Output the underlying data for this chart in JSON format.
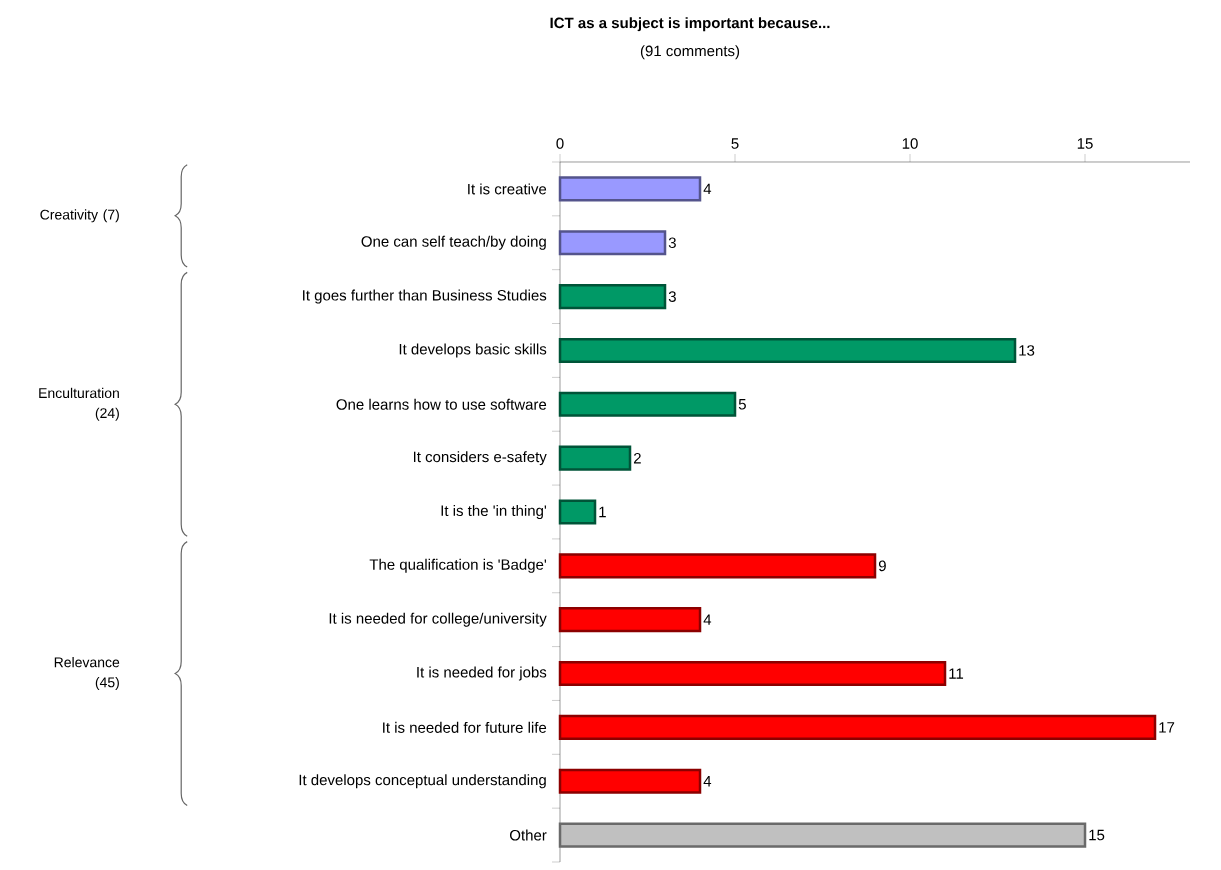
{
  "chart_data": {
    "type": "bar",
    "orientation": "horizontal",
    "title": "ICT as a subject is important because...",
    "subtitle": "(91 comments)",
    "categories": [
      "It is creative",
      "One can self teach/by doing",
      "It goes further than Business Studies",
      "It develops basic skills",
      "One learns how to use software",
      "It considers e-safety",
      "It is the 'in thing'",
      "The qualification is 'Badge'",
      "It is needed for college/university",
      "It is needed for jobs",
      "It is needed for future life",
      "It develops conceptual understanding",
      "Other"
    ],
    "values": [
      4,
      3,
      3,
      13,
      5,
      2,
      1,
      9,
      4,
      11,
      17,
      4,
      15
    ],
    "colors": [
      "#9999ff",
      "#9999ff",
      "#009966",
      "#009966",
      "#009966",
      "#009966",
      "#009966",
      "#ff0000",
      "#ff0000",
      "#ff0000",
      "#ff0000",
      "#ff0000",
      "#c0c0c0"
    ],
    "xlim": [
      0,
      18
    ],
    "xticks": [
      0,
      5,
      10,
      15
    ],
    "data_labels": true,
    "grid": false,
    "annotations": [
      "Creativity (7)",
      "Enculturation (24)",
      "Relevance (45)"
    ]
  }
}
